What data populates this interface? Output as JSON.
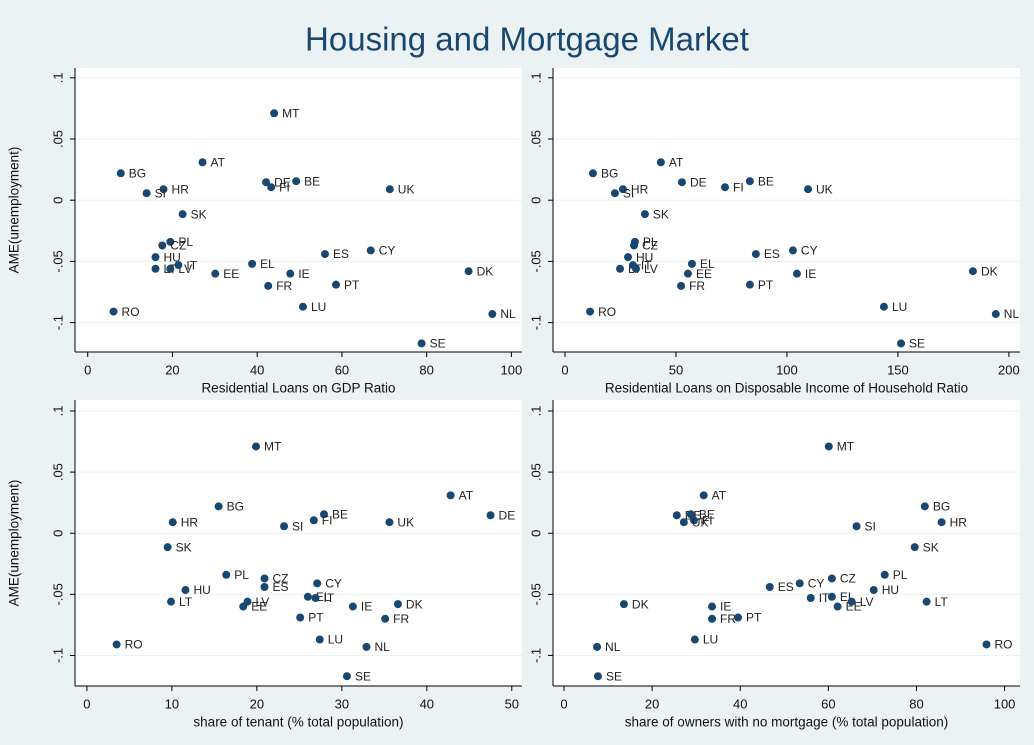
{
  "title": "Housing and Mortgage Market",
  "chart_data": [
    {
      "type": "scatter",
      "x_label": "Residential Loans on GDP Ratio",
      "y_label": "AME(unemployment)",
      "color": "#1a476f",
      "grid": true,
      "xlim": [
        -3,
        102.5
      ],
      "ylim": [
        -0.124,
        0.108
      ],
      "xticks": [
        0,
        20,
        40,
        60,
        80,
        100
      ],
      "yticks": [
        {
          "value": 0.1,
          "label": ".1"
        },
        {
          "value": 0.05,
          "label": ".05"
        },
        0,
        {
          "value": -0.05,
          "label": "-.05"
        },
        {
          "value": -0.1,
          "label": "-.1"
        }
      ],
      "labels": [
        "MT",
        "AT",
        "BG",
        "DE",
        "BE",
        "FI",
        "HR",
        "SI",
        "UK",
        "SK",
        "PL",
        "CZ",
        "HU",
        "LT",
        "LV",
        "IT",
        "ES",
        "CY",
        "EL",
        "EE",
        "IE",
        "DK",
        "FR",
        "PT",
        "LU",
        "RO",
        "NL",
        "SE"
      ],
      "x": [
        44.0,
        27.1,
        7.8,
        42.1,
        49.2,
        43.3,
        17.9,
        13.9,
        71.3,
        22.4,
        19.5,
        17.6,
        16.0,
        16.0,
        19.5,
        21.4,
        56.0,
        66.8,
        38.8,
        30.1,
        47.8,
        89.9,
        42.6,
        58.6,
        50.8,
        6.1,
        95.5,
        78.8
      ],
      "values": [
        0.071,
        0.031,
        0.022,
        0.0147,
        0.0155,
        0.0106,
        0.009,
        0.0057,
        0.009,
        -0.0114,
        -0.034,
        -0.037,
        -0.0465,
        -0.056,
        -0.056,
        -0.053,
        -0.044,
        -0.041,
        -0.052,
        -0.06,
        -0.06,
        -0.058,
        -0.07,
        -0.069,
        -0.087,
        -0.091,
        -0.093,
        -0.117
      ]
    },
    {
      "type": "scatter",
      "x_label": "Residential Loans on Disposable Income of Household Ratio",
      "color": "#1a476f",
      "grid": true,
      "xlim": [
        -5.4,
        205
      ],
      "ylim": [
        -0.124,
        0.108
      ],
      "xticks": [
        0,
        50,
        100,
        150,
        200
      ],
      "yticks": [
        {
          "value": 0.1,
          "label": ".1"
        },
        {
          "value": 0.05,
          "label": ".05"
        },
        0,
        {
          "value": -0.05,
          "label": "-.05"
        },
        {
          "value": -0.1,
          "label": "-.1"
        }
      ],
      "labels": [
        "AT",
        "BG",
        "DE",
        "BE",
        "FI",
        "HR",
        "SI",
        "UK",
        "SK",
        "PL",
        "CZ",
        "HU",
        "LT",
        "LV",
        "IT",
        "EL",
        "EE",
        "ES",
        "CY",
        "IE",
        "DK",
        "FR",
        "PT",
        "LU",
        "RO",
        "NL",
        "SE"
      ],
      "x": [
        43.2,
        12.6,
        52.7,
        83.3,
        72.1,
        26.1,
        22.5,
        109.5,
        36.0,
        31.5,
        31.1,
        28.4,
        24.8,
        32.0,
        30.6,
        57.2,
        55.4,
        86.0,
        102.7,
        104.5,
        183.8,
        52.3,
        83.3,
        143.7,
        11.3,
        194.1,
        151.4
      ],
      "values": [
        0.031,
        0.022,
        0.0147,
        0.0155,
        0.0106,
        0.009,
        0.0057,
        0.009,
        -0.0114,
        -0.034,
        -0.037,
        -0.0465,
        -0.056,
        -0.056,
        -0.053,
        -0.052,
        -0.06,
        -0.044,
        -0.041,
        -0.06,
        -0.058,
        -0.07,
        -0.069,
        -0.087,
        -0.091,
        -0.093,
        -0.117
      ]
    },
    {
      "type": "scatter",
      "x_label": "share of tenant (% total population)",
      "y_label": "AME(unemployment)",
      "color": "#1a476f",
      "grid": true,
      "xlim": [
        -1.4,
        51.2
      ],
      "ylim": [
        -0.125,
        0.109
      ],
      "xticks": [
        0,
        10,
        20,
        30,
        40,
        50
      ],
      "yticks": [
        {
          "value": 0.1,
          "label": ".1"
        },
        {
          "value": 0.05,
          "label": ".05"
        },
        0,
        {
          "value": -0.05,
          "label": "-.05"
        },
        {
          "value": -0.1,
          "label": "-.1"
        }
      ],
      "labels": [
        "MT",
        "AT",
        "BG",
        "DE",
        "BE",
        "FI",
        "HR",
        "SI",
        "UK",
        "SK",
        "PL",
        "CZ",
        "ES",
        "CY",
        "HU",
        "LT",
        "LV",
        "EE",
        "EL",
        "IT",
        "IE",
        "DK",
        "FR",
        "PT",
        "LU",
        "RO",
        "NL",
        "SE"
      ],
      "x": [
        19.9,
        42.8,
        15.5,
        47.5,
        27.9,
        26.7,
        10.1,
        23.2,
        35.6,
        9.5,
        16.4,
        20.9,
        20.9,
        27.1,
        11.6,
        9.9,
        18.9,
        18.4,
        26.0,
        26.9,
        31.3,
        36.6,
        35.1,
        25.1,
        27.4,
        3.5,
        32.9,
        30.6
      ],
      "values": [
        0.071,
        0.031,
        0.022,
        0.0147,
        0.0155,
        0.0106,
        0.009,
        0.0057,
        0.009,
        -0.0114,
        -0.034,
        -0.037,
        -0.044,
        -0.041,
        -0.0465,
        -0.056,
        -0.056,
        -0.06,
        -0.052,
        -0.053,
        -0.06,
        -0.058,
        -0.07,
        -0.069,
        -0.087,
        -0.091,
        -0.093,
        -0.117
      ]
    },
    {
      "type": "scatter",
      "x_label": "share of owners with no mortgage (% total population)",
      "color": "#1a476f",
      "grid": true,
      "xlim": [
        -2.5,
        103.5
      ],
      "ylim": [
        -0.125,
        0.109
      ],
      "xticks": [
        0,
        20,
        40,
        60,
        80,
        100
      ],
      "yticks": [
        {
          "value": 0.1,
          "label": ".1"
        },
        {
          "value": 0.05,
          "label": ".05"
        },
        0,
        {
          "value": -0.05,
          "label": "-.05"
        },
        {
          "value": -0.1,
          "label": "-.1"
        }
      ],
      "labels": [
        "MT",
        "AT",
        "BG",
        "DE",
        "BE",
        "FI",
        "UK",
        "HR",
        "SI",
        "SK",
        "PL",
        "CZ",
        "CY",
        "ES",
        "HU",
        "IT",
        "EL",
        "EE",
        "LV",
        "LT",
        "DK",
        "IE",
        "FR",
        "PT",
        "LU",
        "RO",
        "NL",
        "SE"
      ],
      "x": [
        60.1,
        31.7,
        81.9,
        25.6,
        28.8,
        29.5,
        27.2,
        85.7,
        66.4,
        79.6,
        72.8,
        60.8,
        53.5,
        46.7,
        70.3,
        56.0,
        60.8,
        62.1,
        65.3,
        82.3,
        13.6,
        33.6,
        33.6,
        39.5,
        29.7,
        95.9,
        7.5,
        7.7
      ],
      "values": [
        0.071,
        0.031,
        0.022,
        0.0147,
        0.0155,
        0.0106,
        0.009,
        0.009,
        0.0057,
        -0.0114,
        -0.034,
        -0.037,
        -0.041,
        -0.044,
        -0.0465,
        -0.053,
        -0.052,
        -0.06,
        -0.056,
        -0.056,
        -0.058,
        -0.06,
        -0.07,
        -0.069,
        -0.087,
        -0.091,
        -0.093,
        -0.117
      ]
    }
  ]
}
